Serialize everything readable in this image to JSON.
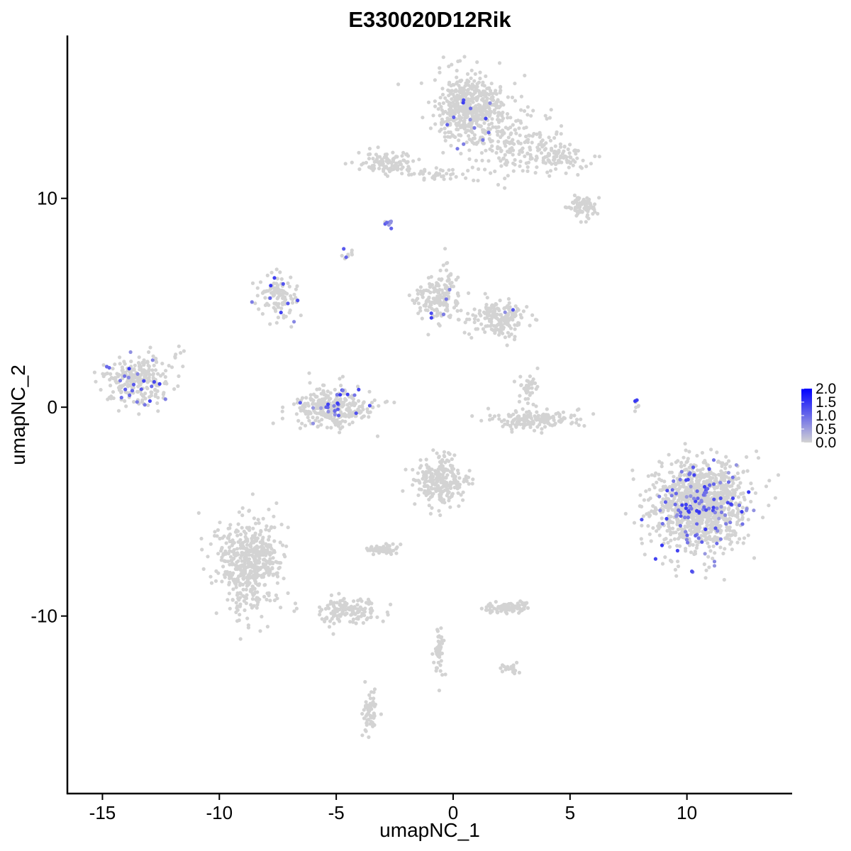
{
  "chart_data": {
    "type": "scatter",
    "title": "E330020D12Rik",
    "xlabel": "umapNC_1",
    "ylabel": "umapNC_2",
    "xlim": [
      -16.5,
      14.5
    ],
    "ylim": [
      -18.5,
      17.8
    ],
    "x_ticks": [
      -15,
      -10,
      -5,
      0,
      5,
      10
    ],
    "y_ticks": [
      -10,
      0,
      10
    ],
    "grid": false,
    "legend": {
      "title": "",
      "placement": "right",
      "labels": [
        "2.0",
        "1.5",
        "1.0",
        "0.5",
        "0.0"
      ],
      "color_low": "#d3d3d3",
      "color_high": "#0000ff",
      "range": [
        0,
        2.0
      ]
    },
    "clusters": [
      {
        "cx": 0.8,
        "cy": 14.3,
        "sx": 1.0,
        "sy": 1.1,
        "n": 520,
        "expr_frac": 0.03
      },
      {
        "cx": 2.6,
        "cy": 12.5,
        "sx": 1.3,
        "sy": 1.0,
        "n": 170,
        "expr_frac": 0.01
      },
      {
        "cx": 4.6,
        "cy": 11.9,
        "sx": 0.9,
        "sy": 0.5,
        "n": 90,
        "expr_frac": 0.01
      },
      {
        "cx": 5.6,
        "cy": 9.6,
        "sx": 0.45,
        "sy": 0.35,
        "n": 80,
        "expr_frac": 0.0
      },
      {
        "cx": -2.8,
        "cy": 11.7,
        "sx": 0.9,
        "sy": 0.4,
        "n": 110,
        "expr_frac": 0.0
      },
      {
        "cx": -0.7,
        "cy": 11.2,
        "sx": 0.9,
        "sy": 0.2,
        "n": 35,
        "expr_frac": 0.0
      },
      {
        "cx": -2.7,
        "cy": 8.8,
        "sx": 0.12,
        "sy": 0.1,
        "n": 10,
        "expr_frac": 0.7
      },
      {
        "cx": -4.5,
        "cy": 7.4,
        "sx": 0.2,
        "sy": 0.25,
        "n": 10,
        "expr_frac": 0.3
      },
      {
        "cx": -7.5,
        "cy": 5.2,
        "sx": 0.55,
        "sy": 0.7,
        "n": 110,
        "expr_frac": 0.12
      },
      {
        "cx": -0.6,
        "cy": 5.3,
        "sx": 0.7,
        "sy": 0.8,
        "n": 170,
        "expr_frac": 0.04
      },
      {
        "cx": 2.0,
        "cy": 4.2,
        "sx": 0.8,
        "sy": 0.55,
        "n": 180,
        "expr_frac": 0.02
      },
      {
        "cx": -13.5,
        "cy": 1.3,
        "sx": 0.9,
        "sy": 0.75,
        "n": 260,
        "expr_frac": 0.1
      },
      {
        "cx": -5.2,
        "cy": 0.0,
        "sx": 1.1,
        "sy": 0.6,
        "n": 320,
        "expr_frac": 0.08
      },
      {
        "cx": 3.5,
        "cy": -0.6,
        "sx": 1.3,
        "sy": 0.3,
        "n": 170,
        "expr_frac": 0.0
      },
      {
        "cx": 3.2,
        "cy": 0.8,
        "sx": 0.3,
        "sy": 0.5,
        "n": 40,
        "expr_frac": 0.0
      },
      {
        "cx": 10.6,
        "cy": -4.7,
        "sx": 1.3,
        "sy": 1.35,
        "n": 1200,
        "expr_frac": 0.09
      },
      {
        "cx": -0.5,
        "cy": -3.6,
        "sx": 0.75,
        "sy": 0.75,
        "n": 250,
        "expr_frac": 0.0
      },
      {
        "cx": -8.7,
        "cy": -7.5,
        "sx": 0.9,
        "sy": 1.5,
        "n": 520,
        "expr_frac": 0.0
      },
      {
        "cx": -4.6,
        "cy": -9.8,
        "sx": 1.0,
        "sy": 0.45,
        "n": 140,
        "expr_frac": 0.0
      },
      {
        "cx": 2.3,
        "cy": -9.6,
        "sx": 0.6,
        "sy": 0.2,
        "n": 90,
        "expr_frac": 0.0
      },
      {
        "cx": -3.0,
        "cy": -6.8,
        "sx": 0.4,
        "sy": 0.2,
        "n": 50,
        "expr_frac": 0.0
      },
      {
        "cx": -3.6,
        "cy": -14.6,
        "sx": 0.2,
        "sy": 0.7,
        "n": 60,
        "expr_frac": 0.0
      },
      {
        "cx": -0.6,
        "cy": -11.6,
        "sx": 0.2,
        "sy": 0.8,
        "n": 45,
        "expr_frac": 0.0
      },
      {
        "cx": 2.4,
        "cy": -12.5,
        "sx": 0.3,
        "sy": 0.15,
        "n": 20,
        "expr_frac": 0.0
      },
      {
        "cx": 7.8,
        "cy": 0.1,
        "sx": 0.1,
        "sy": 0.3,
        "n": 8,
        "expr_frac": 0.3
      },
      {
        "cx": -11.8,
        "cy": 2.6,
        "sx": 0.15,
        "sy": 0.15,
        "n": 6,
        "expr_frac": 0.0
      }
    ]
  }
}
